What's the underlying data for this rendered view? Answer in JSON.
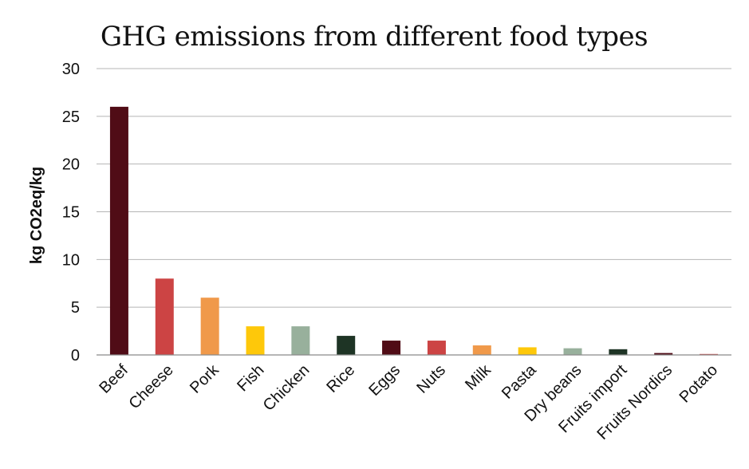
{
  "chart_data": {
    "type": "bar",
    "title": "GHG emissions from different food types",
    "xlabel": "",
    "ylabel": "kg CO2eq/kg",
    "ylim": [
      0,
      30
    ],
    "yticks": [
      0,
      5,
      10,
      15,
      20,
      25,
      30
    ],
    "grid": true,
    "legend": "none",
    "categories": [
      "Beef",
      "Cheese",
      "Pork",
      "Fish",
      "Chicken",
      "Rice",
      "Eggs",
      "Nuts",
      "Milk",
      "Pasta",
      "Dry beans",
      "Fruits import",
      "Fruits Nordics",
      "Potato"
    ],
    "values": [
      26,
      8,
      6,
      3,
      3,
      2,
      1.5,
      1.5,
      1,
      0.8,
      0.7,
      0.6,
      0.2,
      0.1
    ],
    "colors": [
      "#500c16",
      "#cc4444",
      "#f0994a",
      "#fec80a",
      "#98b09c",
      "#1e3425",
      "#500c16",
      "#cc4444",
      "#f0994a",
      "#fec80a",
      "#98b09c",
      "#1e3425",
      "#500c16",
      "#cc4444"
    ]
  }
}
